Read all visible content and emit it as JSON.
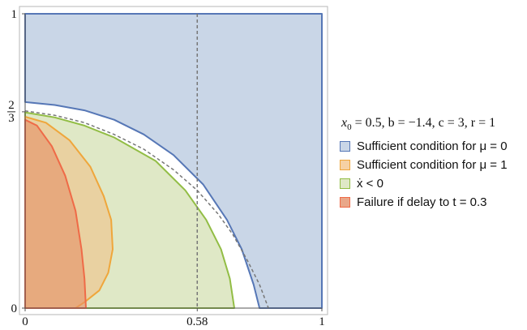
{
  "chart_data": {
    "type": "area",
    "xlim": [
      0,
      1
    ],
    "ylim": [
      0,
      1
    ],
    "x_ticks": [
      {
        "value": 0,
        "label": "0"
      },
      {
        "value": 0.58,
        "label": "0.58"
      },
      {
        "value": 1,
        "label": "1"
      }
    ],
    "y_ticks": [
      {
        "value": 0,
        "label": "0"
      },
      {
        "value": 0.667,
        "label": "2/3"
      },
      {
        "value": 1,
        "label": "1"
      }
    ],
    "legend": {
      "title_parts": [
        "x",
        "0",
        " = 0.5, b = −1.4, c = 3, r = 1"
      ],
      "placement": "right",
      "entries": [
        {
          "label": "Sufficient condition for μ = 0",
          "fill": "#c9d6e7",
          "stroke": "#5677b6"
        },
        {
          "label": "Sufficient condition for μ = 1",
          "fill": "#f6d1a4",
          "stroke": "#efa63b"
        },
        {
          "label": "ẋ < 0",
          "fill": "#dfe8c6",
          "stroke": "#92bd45"
        },
        {
          "label": "Failure if delay to t = 0.3",
          "fill": "#e9a789",
          "stroke": "#ef6a47"
        }
      ]
    },
    "regions": [
      {
        "name": "Sufficient condition for μ = 0",
        "fill": "#c9d6e7",
        "stroke": "#5677b6",
        "opacity": 1,
        "points": [
          [
            0,
            1
          ],
          [
            1,
            1
          ],
          [
            1,
            0
          ],
          [
            0.79,
            0
          ],
          [
            0.77,
            0.08
          ],
          [
            0.73,
            0.2
          ],
          [
            0.68,
            0.3
          ],
          [
            0.6,
            0.42
          ],
          [
            0.5,
            0.52
          ],
          [
            0.4,
            0.59
          ],
          [
            0.3,
            0.64
          ],
          [
            0.2,
            0.672
          ],
          [
            0.1,
            0.69
          ],
          [
            0,
            0.7
          ]
        ]
      },
      {
        "name": "ẋ < 0",
        "fill": "#dfe8c6",
        "stroke": "#92bd45",
        "opacity": 1,
        "points": [
          [
            0,
            0
          ],
          [
            0.705,
            0
          ],
          [
            0.69,
            0.1
          ],
          [
            0.66,
            0.2
          ],
          [
            0.61,
            0.3
          ],
          [
            0.54,
            0.4
          ],
          [
            0.44,
            0.5
          ],
          [
            0.3,
            0.58
          ],
          [
            0.2,
            0.62
          ],
          [
            0.1,
            0.648
          ],
          [
            0,
            0.665
          ]
        ]
      },
      {
        "name": "Sufficient condition for μ = 1",
        "fill": "#f0be83",
        "stroke": "#efa63b",
        "opacity": 0.55,
        "points": [
          [
            0,
            0.65
          ],
          [
            0.07,
            0.63
          ],
          [
            0.15,
            0.57
          ],
          [
            0.22,
            0.48
          ],
          [
            0.265,
            0.38
          ],
          [
            0.29,
            0.3
          ],
          [
            0.295,
            0.2
          ],
          [
            0.28,
            0.12
          ],
          [
            0.25,
            0.06
          ],
          [
            0.2,
            0.02
          ],
          [
            0.17,
            0
          ],
          [
            0,
            0
          ]
        ]
      },
      {
        "name": "Failure if delay to t = 0.3",
        "fill": "#e68f68",
        "stroke": "#ef6a47",
        "opacity": 0.6,
        "points": [
          [
            0,
            0.64
          ],
          [
            0.04,
            0.62
          ],
          [
            0.09,
            0.55
          ],
          [
            0.135,
            0.45
          ],
          [
            0.17,
            0.33
          ],
          [
            0.19,
            0.2
          ],
          [
            0.2,
            0.1
          ],
          [
            0.205,
            0
          ],
          [
            0,
            0
          ]
        ]
      }
    ],
    "reference_lines": [
      {
        "type": "vertical",
        "x": 0.58,
        "style": "dashed"
      },
      {
        "type": "curve",
        "style": "dashed",
        "points": [
          [
            0,
            0.67
          ],
          [
            0.1,
            0.655
          ],
          [
            0.2,
            0.63
          ],
          [
            0.3,
            0.59
          ],
          [
            0.4,
            0.54
          ],
          [
            0.5,
            0.47
          ],
          [
            0.58,
            0.4
          ],
          [
            0.65,
            0.32
          ],
          [
            0.7,
            0.25
          ],
          [
            0.75,
            0.16
          ],
          [
            0.79,
            0.08
          ],
          [
            0.82,
            0
          ]
        ]
      }
    ]
  }
}
